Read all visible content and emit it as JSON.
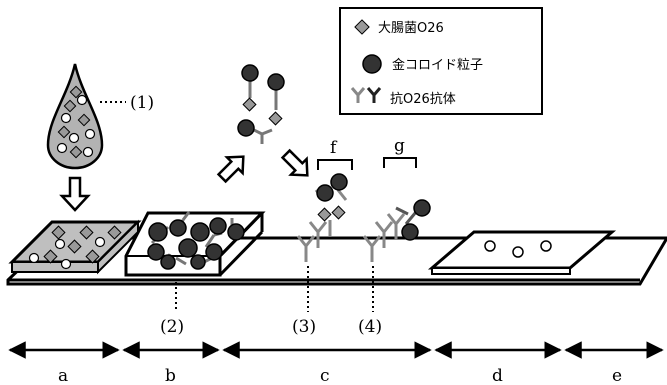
{
  "legend": {
    "ecoli": "大腸菌O26",
    "gold": "金コロイド粒子",
    "antibody": "抗O26抗体"
  },
  "labels": {
    "sample": "(1)",
    "conjugate_pad": "(2)",
    "test_line": "(3)",
    "control_line": "(4)",
    "f": "f",
    "g": "g"
  },
  "sections": [
    "a",
    "b",
    "c",
    "d",
    "e"
  ],
  "colors": {
    "ecoli": "#999999",
    "gold": "#333333",
    "antibody": "#888888",
    "sample_pad": "#bfbfbf",
    "drop": "#b3b3b3"
  }
}
